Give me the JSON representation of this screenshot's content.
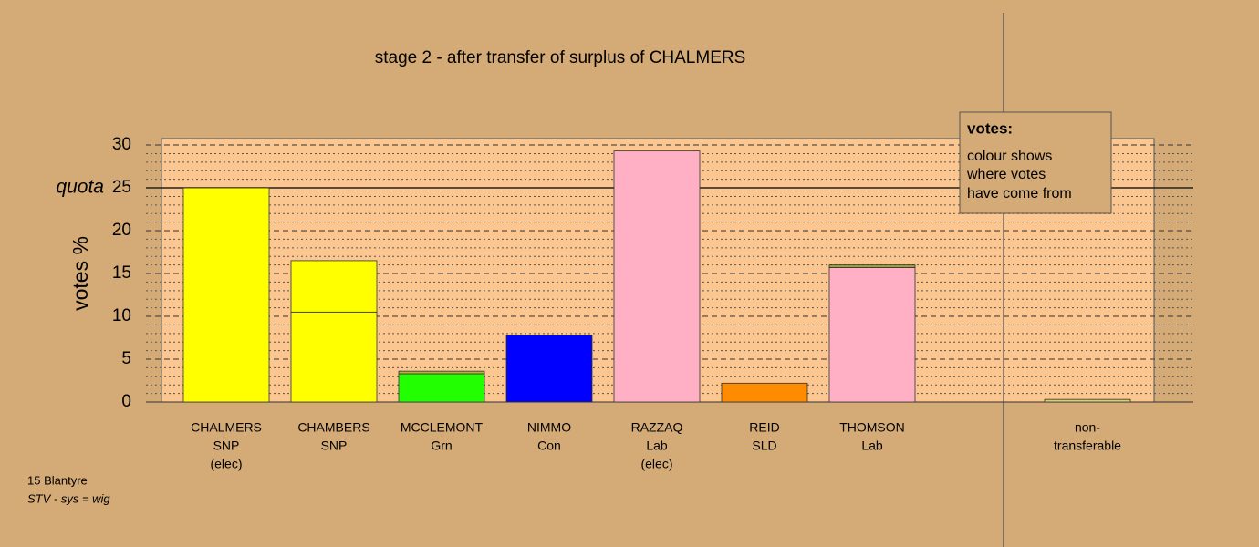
{
  "chart_data": {
    "type": "stacked-bar",
    "title": "stage 2 - after transfer of surplus of CHALMERS",
    "y_label": "votes %",
    "categories": [
      [
        "CHALMERS",
        "SNP",
        "(elec)"
      ],
      [
        "CHAMBERS",
        "SNP"
      ],
      [
        "MCCLEMONT",
        "Grn"
      ],
      [
        "NIMMO",
        "Con"
      ],
      [
        "RAZZAQ",
        "Lab",
        "(elec)"
      ],
      [
        "REID",
        "SLD"
      ],
      [
        "THOMSON",
        "Lab"
      ],
      [
        "non-",
        "transferable"
      ]
    ],
    "segments": [
      [
        25
      ],
      [
        10.5,
        6
      ],
      [
        3.3,
        0.3
      ],
      [
        7.8
      ],
      [
        29.3
      ],
      [
        2.2
      ],
      [
        15.7,
        0.3
      ],
      [
        0.3
      ]
    ],
    "segment_colors": [
      [
        "#ffff00"
      ],
      [
        "#ffff00",
        "#ffff00"
      ],
      [
        "#22ff00",
        "#b5b535"
      ],
      [
        "#0000ff"
      ],
      [
        "#ffb0c4"
      ],
      [
        "#ff8c00"
      ],
      [
        "#ffb0c4",
        "#a4a030"
      ],
      [
        "#d8d070"
      ]
    ],
    "ylim": [
      0,
      30.75
    ],
    "yticks": [
      0,
      5,
      10,
      15,
      20,
      25,
      30
    ],
    "yticks_minor": [
      1,
      2,
      3,
      4,
      6,
      7,
      8,
      9,
      11,
      12,
      13,
      14,
      16,
      17,
      18,
      19,
      21,
      22,
      23,
      24,
      26,
      27,
      28,
      29
    ],
    "quota": 25,
    "quota_label": "quota",
    "grid": true,
    "info_box": {
      "title": "votes:",
      "lines": [
        "colour shows",
        "where votes",
        "have come from"
      ]
    },
    "footer": {
      "line1": "15 Blantyre",
      "line2": "STV - sys = wig"
    }
  }
}
